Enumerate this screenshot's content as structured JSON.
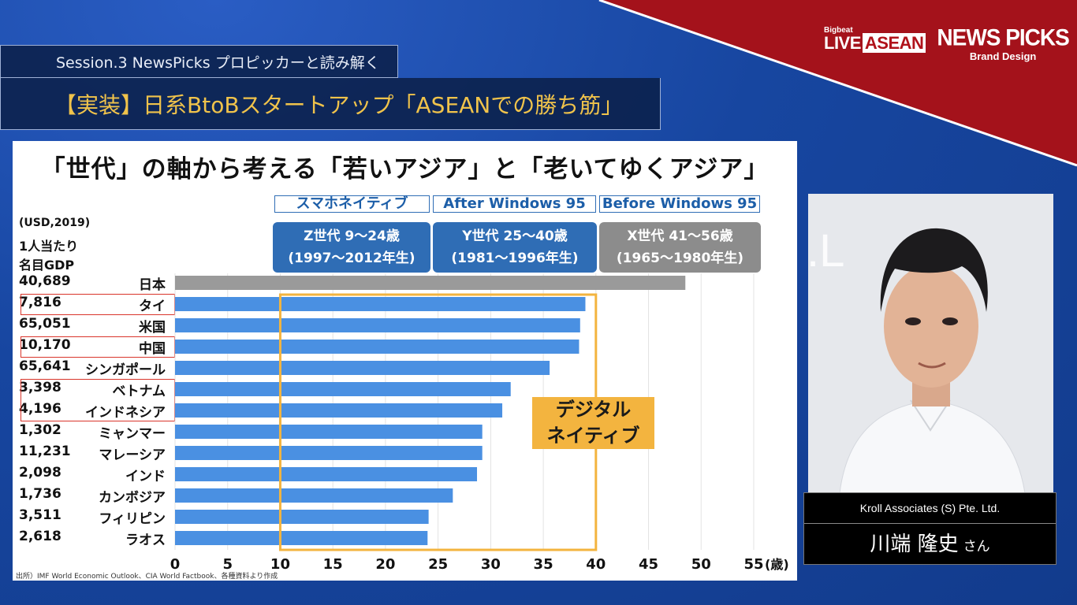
{
  "header": {
    "session": "Session.3 NewsPicks プロピッカーと読み解く",
    "title": "【実装】日系BtoBスタートアップ「ASEANでの勝ち筋」"
  },
  "logos": {
    "bigbeat_small": "Bigbeat",
    "live": "LIVE",
    "asean": "ASEAN",
    "newspicks": "NEWS PICKS",
    "brand_design": "Brand Design"
  },
  "speaker": {
    "company": "Kroll Associates (S) Pte. Ltd.",
    "name": "川端 隆史",
    "honorific": "さん"
  },
  "colors": {
    "background": "#1746a0",
    "red_band": "#a4121b",
    "bar_blue": "#4a90e2",
    "bar_gray": "#9a9a9a",
    "gen_blue": "#2f6db5",
    "gen_gray": "#8c8c8c",
    "highlight_orange": "#f3b43f",
    "red_frame": "#d9352b"
  },
  "chart_data": {
    "type": "bar",
    "orientation": "horizontal",
    "title": "「世代」の軸から考える「若いアジア」と「老いてゆくアジア」",
    "unit_label_lines": [
      "(USD,2019)",
      "1人当たり",
      "名目GDP"
    ],
    "x_unit": "(歳)",
    "xlim": [
      0,
      55
    ],
    "x_ticks": [
      0,
      5,
      10,
      15,
      20,
      25,
      30,
      35,
      40,
      45,
      50,
      55
    ],
    "grid": true,
    "categories": [
      "日本",
      "タイ",
      "米国",
      "中国",
      "シンガポール",
      "ベトナム",
      "インドネシア",
      "ミャンマー",
      "マレーシア",
      "インド",
      "カンボジア",
      "フィリピン",
      "ラオス"
    ],
    "gdp_per_capita": [
      "40,689",
      "7,816",
      "65,051",
      "10,170",
      "65,641",
      "3,398",
      "4,196",
      "1,302",
      "11,231",
      "2,098",
      "1,736",
      "3,511",
      "2,618"
    ],
    "values": [
      48.5,
      39.0,
      38.5,
      38.4,
      35.6,
      31.9,
      31.1,
      29.2,
      29.2,
      28.7,
      26.4,
      24.1,
      24.0
    ],
    "highlight_gray": [
      "日本"
    ],
    "red_framed": [
      "タイ",
      "中国",
      "ベトナム",
      "インドネシア"
    ],
    "generations": [
      {
        "header": "スマホネイティブ",
        "label": "Z世代 9〜24歳",
        "years": "(1997〜2012年生)",
        "color": "blue"
      },
      {
        "header": "After Windows 95",
        "label": "Y世代 25〜40歳",
        "years": "(1981〜1996年生)",
        "color": "blue"
      },
      {
        "header": "Before Windows 95",
        "label": "X世代 41〜56歳",
        "years": "(1965〜1980年生)",
        "color": "gray"
      }
    ],
    "digital_native": {
      "range": [
        10,
        40
      ],
      "label_lines": [
        "デジタル",
        "ネイティブ"
      ]
    },
    "source": "出所）IMF World Economic Outlook、CIA World Factbook、各種資料より作成"
  }
}
